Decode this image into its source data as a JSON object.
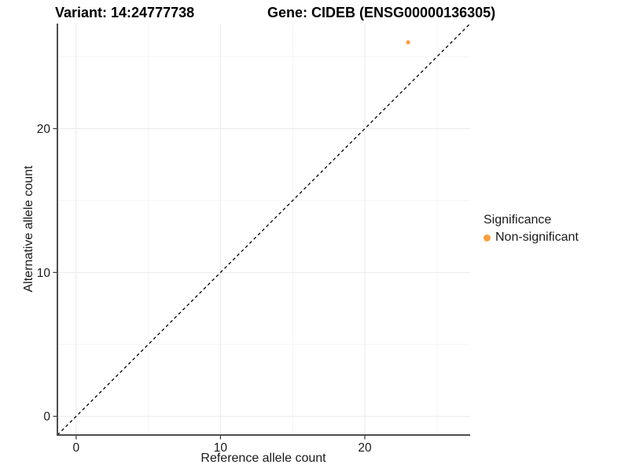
{
  "titles": {
    "variant": "Variant: 14:24777738",
    "gene": "Gene: CIDEB (ENSG00000136305)"
  },
  "axes": {
    "x_label": "Reference allele count",
    "y_label": "Alternative allele count"
  },
  "legend": {
    "title": "Significance",
    "items": [
      {
        "label": "Non-significant",
        "color": "#F9A03F"
      }
    ]
  },
  "chart_data": {
    "type": "scatter",
    "title": "Variant: 14:24777738   Gene: CIDEB (ENSG00000136305)",
    "xlabel": "Reference allele count",
    "ylabel": "Alternative allele count",
    "xlim": [
      -1.3,
      27.3
    ],
    "ylim": [
      -1.3,
      27.3
    ],
    "x_major_ticks": [
      0,
      10,
      20
    ],
    "y_major_ticks": [
      0,
      10,
      20
    ],
    "x_minor_ticks": [
      5,
      15,
      25
    ],
    "y_minor_ticks": [
      5,
      15,
      25
    ],
    "grid": true,
    "legend_position": "right",
    "series": [
      {
        "name": "Non-significant",
        "color": "#F9A03F",
        "points": [
          {
            "x": 23,
            "y": 26
          }
        ]
      }
    ],
    "reference_line": {
      "type": "identity y=x",
      "style": "dashed",
      "color": "#000000"
    },
    "styles": {
      "axis_line_color": "#4d4d4d",
      "tick_color": "#333333",
      "tick_label_color": "#1a1a1a",
      "major_grid_color": "#e9e9e9",
      "minor_grid_color": "#f4f4f4",
      "background": "#ffffff"
    }
  }
}
